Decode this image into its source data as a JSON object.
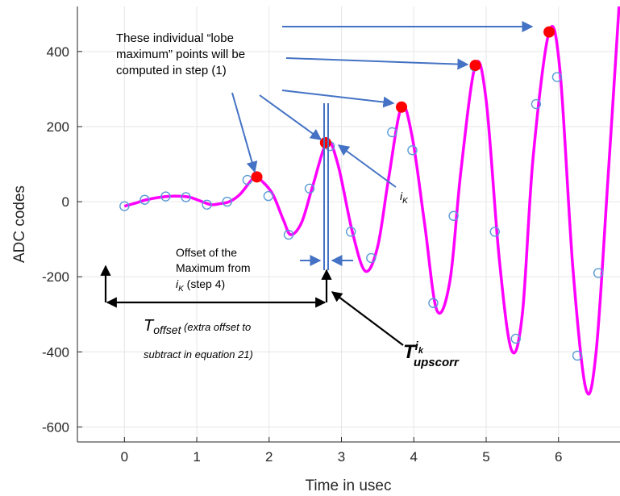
{
  "chart_data": {
    "type": "line",
    "title": "",
    "xlabel": "Time in usec",
    "ylabel": "ADC codes",
    "xlim": [
      -0.65,
      6.85
    ],
    "ylim": [
      -640,
      520
    ],
    "xticks": [
      0,
      1,
      2,
      3,
      4,
      5,
      6
    ],
    "yticks": [
      -600,
      -400,
      -200,
      0,
      200,
      400
    ],
    "grid": true,
    "legend": "none",
    "colors": {
      "curve": "#ff00ff",
      "samples": "#5a9bd5",
      "maxima": "#ff0000",
      "arrows": "#4472c4",
      "black": "#000000"
    },
    "series": [
      {
        "kind": "interpolated-curve",
        "points": [
          [
            0,
            -12
          ],
          [
            0.15,
            -4
          ],
          [
            0.3,
            5
          ],
          [
            0.5,
            12
          ],
          [
            0.7,
            15
          ],
          [
            0.9,
            12
          ],
          [
            1.1,
            -2
          ],
          [
            1.2,
            -8
          ],
          [
            1.3,
            -6
          ],
          [
            1.45,
            0
          ],
          [
            1.6,
            20
          ],
          [
            1.8,
            66
          ],
          [
            1.9,
            55
          ],
          [
            2.05,
            20
          ],
          [
            2.2,
            -50
          ],
          [
            2.3,
            -88
          ],
          [
            2.45,
            -55
          ],
          [
            2.6,
            40
          ],
          [
            2.8,
            157
          ],
          [
            2.95,
            100
          ],
          [
            3.15,
            -80
          ],
          [
            3.33,
            -185
          ],
          [
            3.5,
            -120
          ],
          [
            3.65,
            60
          ],
          [
            3.83,
            252
          ],
          [
            3.98,
            170
          ],
          [
            4.15,
            -60
          ],
          [
            4.32,
            -290
          ],
          [
            4.5,
            -210
          ],
          [
            4.65,
            80
          ],
          [
            4.85,
            363
          ],
          [
            5.0,
            270
          ],
          [
            5.18,
            -150
          ],
          [
            5.35,
            -395
          ],
          [
            5.5,
            -300
          ],
          [
            5.65,
            120
          ],
          [
            5.87,
            452
          ],
          [
            6.02,
            350
          ],
          [
            6.2,
            -180
          ],
          [
            6.38,
            -500
          ],
          [
            6.52,
            -400
          ],
          [
            6.68,
            50
          ],
          [
            6.85,
            560
          ]
        ]
      },
      {
        "kind": "samples",
        "points": [
          [
            0,
            -12
          ],
          [
            0.28,
            5
          ],
          [
            0.57,
            14
          ],
          [
            0.85,
            12
          ],
          [
            1.14,
            -8
          ],
          [
            1.42,
            0
          ],
          [
            1.7,
            58
          ],
          [
            1.99,
            15
          ],
          [
            2.27,
            -88
          ],
          [
            2.56,
            35
          ],
          [
            2.84,
            148
          ],
          [
            3.13,
            -80
          ],
          [
            3.41,
            -150
          ],
          [
            3.7,
            185
          ],
          [
            3.98,
            137
          ],
          [
            4.27,
            -270
          ],
          [
            4.55,
            -38
          ],
          [
            4.84,
            360
          ],
          [
            5.12,
            -80
          ],
          [
            5.41,
            -365
          ],
          [
            5.69,
            260
          ],
          [
            5.98,
            332
          ],
          [
            6.26,
            -410
          ],
          [
            6.55,
            -190
          ]
        ]
      },
      {
        "kind": "lobe-maxima",
        "points": [
          [
            1.83,
            66
          ],
          [
            2.78,
            157
          ],
          [
            3.83,
            252
          ],
          [
            4.85,
            363
          ],
          [
            5.87,
            452
          ]
        ]
      }
    ],
    "annotations": {
      "lobe_line1": "These individual “lobe",
      "lobe_line2": "maximum” points will be",
      "lobe_line3": "computed in step (1)",
      "ik_main": "i",
      "ik_sub": "K",
      "offset_line1": "Offset of the",
      "offset_line2": "Maximum from",
      "offset_line3_main": "i",
      "offset_line3_sub": "K",
      "offset_line3_rest": "  (step 4)",
      "toffset_main": "T",
      "toffset_sub": "offset",
      "toffset_paren": "  (extra  offset  to",
      "toffset_line2": "subtract in equation 21)",
      "tups_main": "T",
      "tups_sup": "i",
      "tups_supsub": "k",
      "tups_sub": "upscorr"
    }
  }
}
